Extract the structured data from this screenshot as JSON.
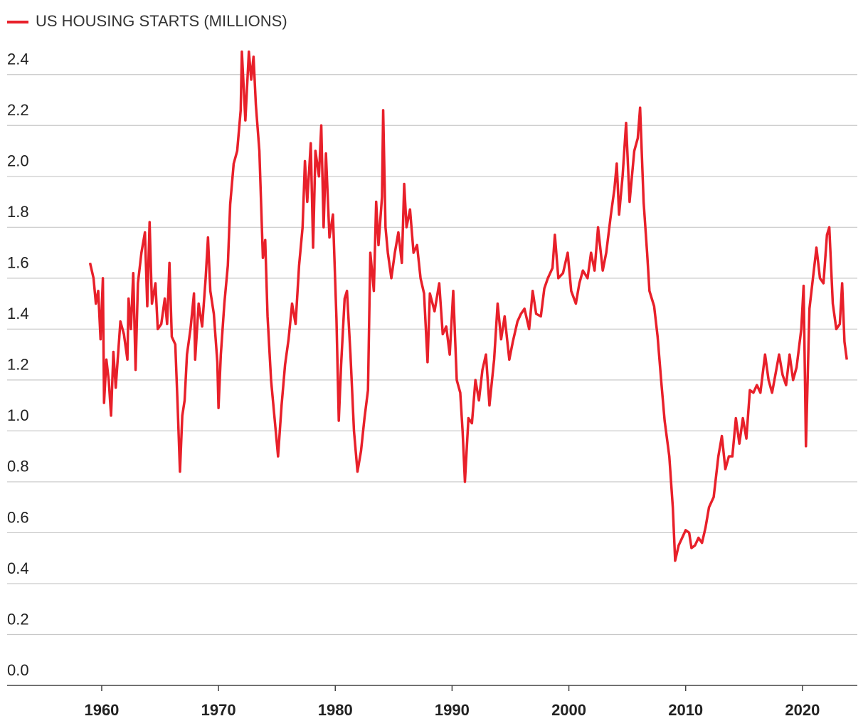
{
  "chart_data": {
    "type": "line",
    "x": [
      1959.0,
      1959.3,
      1959.5,
      1959.7,
      1959.9,
      1960.1,
      1960.2,
      1960.4,
      1960.6,
      1960.8,
      1961.0,
      1961.2,
      1961.4,
      1961.6,
      1961.9,
      1962.2,
      1962.3,
      1962.5,
      1962.7,
      1962.9,
      1963.1,
      1963.4,
      1963.7,
      1963.9,
      1964.1,
      1964.3,
      1964.6,
      1964.8,
      1965.1,
      1965.4,
      1965.6,
      1965.8,
      1966.0,
      1966.3,
      1966.5,
      1966.7,
      1966.9,
      1967.1,
      1967.3,
      1967.6,
      1967.9,
      1968.0,
      1968.3,
      1968.6,
      1968.9,
      1969.1,
      1969.3,
      1969.6,
      1969.9,
      1970.0,
      1970.2,
      1970.5,
      1970.8,
      1971.0,
      1971.3,
      1971.6,
      1971.9,
      1972.0,
      1972.3,
      1972.6,
      1972.8,
      1973.0,
      1973.2,
      1973.5,
      1973.8,
      1974.0,
      1974.2,
      1974.5,
      1974.9,
      1975.1,
      1975.4,
      1975.7,
      1976.0,
      1976.3,
      1976.6,
      1976.9,
      1977.2,
      1977.4,
      1977.6,
      1977.9,
      1978.1,
      1978.3,
      1978.6,
      1978.8,
      1979.0,
      1979.2,
      1979.5,
      1979.8,
      1980.1,
      1980.3,
      1980.5,
      1980.8,
      1981.0,
      1981.3,
      1981.6,
      1981.9,
      1982.2,
      1982.5,
      1982.8,
      1983.0,
      1983.3,
      1983.5,
      1983.7,
      1984.0,
      1984.1,
      1984.3,
      1984.5,
      1984.8,
      1985.1,
      1985.4,
      1985.7,
      1985.9,
      1986.1,
      1986.4,
      1986.7,
      1987.0,
      1987.3,
      1987.6,
      1987.9,
      1988.1,
      1988.5,
      1988.9,
      1989.2,
      1989.5,
      1989.8,
      1990.1,
      1990.4,
      1990.7,
      1990.9,
      1991.1,
      1991.4,
      1991.7,
      1992.0,
      1992.3,
      1992.6,
      1992.9,
      1993.2,
      1993.6,
      1993.9,
      1994.2,
      1994.5,
      1994.9,
      1995.2,
      1995.6,
      1995.9,
      1996.2,
      1996.6,
      1996.9,
      1997.2,
      1997.6,
      1997.9,
      1998.2,
      1998.6,
      1998.8,
      1999.1,
      1999.5,
      1999.9,
      2000.2,
      2000.6,
      2000.9,
      2001.2,
      2001.6,
      2001.9,
      2002.2,
      2002.5,
      2002.9,
      2003.2,
      2003.6,
      2003.9,
      2004.1,
      2004.3,
      2004.6,
      2004.9,
      2005.2,
      2005.6,
      2005.9,
      2006.1,
      2006.4,
      2006.7,
      2006.9,
      2007.3,
      2007.6,
      2007.9,
      2008.2,
      2008.6,
      2008.9,
      2009.1,
      2009.4,
      2009.7,
      2010.0,
      2010.3,
      2010.5,
      2010.8,
      2011.1,
      2011.4,
      2011.7,
      2012.0,
      2012.4,
      2012.8,
      2013.1,
      2013.4,
      2013.7,
      2014.0,
      2014.3,
      2014.6,
      2014.9,
      2015.2,
      2015.5,
      2015.8,
      2016.1,
      2016.4,
      2016.8,
      2017.1,
      2017.4,
      2017.8,
      2018.0,
      2018.3,
      2018.6,
      2018.9,
      2019.2,
      2019.5,
      2019.9,
      2020.1,
      2020.3,
      2020.6,
      2020.9,
      2021.2,
      2021.5,
      2021.8,
      2022.1,
      2022.3,
      2022.6,
      2022.9,
      2023.2,
      2023.4,
      2023.6,
      2023.8
    ],
    "series": [
      {
        "name": "US HOUSING STARTS (MILLIONS)",
        "color": "#e8202a",
        "values": [
          1.66,
          1.6,
          1.5,
          1.55,
          1.36,
          1.6,
          1.11,
          1.28,
          1.2,
          1.06,
          1.31,
          1.17,
          1.3,
          1.43,
          1.38,
          1.28,
          1.52,
          1.4,
          1.62,
          1.24,
          1.58,
          1.7,
          1.78,
          1.49,
          1.82,
          1.5,
          1.58,
          1.4,
          1.42,
          1.52,
          1.42,
          1.66,
          1.37,
          1.34,
          1.1,
          0.84,
          1.06,
          1.12,
          1.3,
          1.4,
          1.54,
          1.28,
          1.5,
          1.41,
          1.6,
          1.76,
          1.55,
          1.46,
          1.27,
          1.09,
          1.3,
          1.5,
          1.65,
          1.89,
          2.05,
          2.1,
          2.26,
          2.49,
          2.22,
          2.49,
          2.38,
          2.47,
          2.28,
          2.1,
          1.68,
          1.75,
          1.45,
          1.2,
          1.0,
          0.9,
          1.1,
          1.26,
          1.36,
          1.5,
          1.42,
          1.65,
          1.8,
          2.06,
          1.9,
          2.13,
          1.72,
          2.1,
          2.0,
          2.2,
          1.8,
          2.09,
          1.76,
          1.85,
          1.44,
          1.04,
          1.26,
          1.52,
          1.55,
          1.3,
          1.0,
          0.84,
          0.92,
          1.05,
          1.16,
          1.7,
          1.55,
          1.9,
          1.73,
          1.92,
          2.26,
          1.8,
          1.7,
          1.6,
          1.7,
          1.78,
          1.66,
          1.97,
          1.8,
          1.87,
          1.7,
          1.73,
          1.6,
          1.54,
          1.27,
          1.54,
          1.47,
          1.58,
          1.38,
          1.41,
          1.3,
          1.55,
          1.2,
          1.15,
          1.0,
          0.8,
          1.05,
          1.03,
          1.2,
          1.12,
          1.24,
          1.3,
          1.1,
          1.28,
          1.5,
          1.36,
          1.45,
          1.28,
          1.35,
          1.43,
          1.46,
          1.48,
          1.4,
          1.55,
          1.46,
          1.45,
          1.56,
          1.6,
          1.64,
          1.77,
          1.6,
          1.62,
          1.7,
          1.55,
          1.5,
          1.58,
          1.63,
          1.6,
          1.7,
          1.63,
          1.8,
          1.63,
          1.7,
          1.85,
          1.95,
          2.05,
          1.85,
          2.0,
          2.21,
          1.9,
          2.1,
          2.15,
          2.27,
          1.9,
          1.7,
          1.55,
          1.49,
          1.37,
          1.2,
          1.04,
          0.9,
          0.7,
          0.49,
          0.55,
          0.58,
          0.61,
          0.6,
          0.54,
          0.55,
          0.58,
          0.56,
          0.62,
          0.7,
          0.74,
          0.9,
          0.98,
          0.85,
          0.9,
          0.9,
          1.05,
          0.95,
          1.05,
          0.97,
          1.16,
          1.15,
          1.18,
          1.15,
          1.3,
          1.2,
          1.15,
          1.25,
          1.3,
          1.22,
          1.18,
          1.3,
          1.2,
          1.25,
          1.4,
          1.57,
          0.94,
          1.48,
          1.6,
          1.72,
          1.6,
          1.58,
          1.77,
          1.8,
          1.5,
          1.4,
          1.42,
          1.58,
          1.35,
          1.28
        ]
      }
    ],
    "xlim": [
      1951.9,
      2024.7
    ],
    "xticks": [
      1960,
      1970,
      1980,
      1990,
      2000,
      2010,
      2020
    ],
    "ylim": [
      0,
      2.5
    ],
    "yticks": [
      {
        "value": 0,
        "label": "0.0"
      },
      0.2,
      0.4,
      0.6,
      0.8,
      {
        "value": 1,
        "label": "1.0"
      },
      1.2,
      1.4,
      1.6,
      1.8,
      {
        "value": 2,
        "label": "2.0"
      },
      2.2,
      2.4
    ],
    "grid": true,
    "legend": "top-left"
  }
}
